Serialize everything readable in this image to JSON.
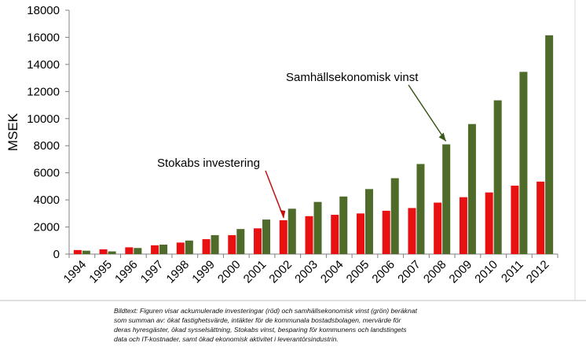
{
  "chart_data": {
    "type": "bar",
    "ylabel": "MSEK",
    "ylim": [
      0,
      18000
    ],
    "yticks": [
      0,
      2000,
      4000,
      6000,
      8000,
      10000,
      12000,
      14000,
      16000,
      18000
    ],
    "categories": [
      "1994",
      "1995",
      "1996",
      "1997",
      "1998",
      "1999",
      "2000",
      "2001",
      "2002",
      "2003",
      "2004",
      "2005",
      "2006",
      "2007",
      "2008",
      "2009",
      "2010",
      "2011",
      "2012"
    ],
    "series": [
      {
        "name": "Stokabs investering",
        "color": "#e81010",
        "values": [
          300,
          350,
          500,
          650,
          850,
          1100,
          1400,
          1900,
          2500,
          2800,
          2900,
          3000,
          3200,
          3400,
          3800,
          4200,
          4550,
          5050,
          5350
        ]
      },
      {
        "name": "Samhällsekonomisk vinst",
        "color": "#4e6b2a",
        "values": [
          250,
          200,
          450,
          700,
          1000,
          1400,
          1850,
          2550,
          3350,
          3850,
          4250,
          4800,
          5600,
          6650,
          8100,
          9600,
          11350,
          13450,
          16150
        ]
      }
    ],
    "annotations": [
      {
        "text": "Samhällsekonomisk vinst",
        "points_to": "2008"
      },
      {
        "text": "Stokabs investering",
        "points_to": "2002"
      }
    ],
    "grid": false
  },
  "caption": {
    "lines": [
      "Bildtext: Figuren visar ackumulerade investeringar (röd) och samhällsekonomisk vinst (grön) beräknat",
      "som summan av: ökat fastighetsvärde, intäkter för de kommunala bostadsbolagen, mervärde för",
      "deras hyresgäster, ökad sysselsättning, Stokabs vinst, besparing för kommunens och landstingets",
      "data och IT-kostnader, samt ökad ekonomisk aktivitet i leverantörsindustrin."
    ]
  }
}
